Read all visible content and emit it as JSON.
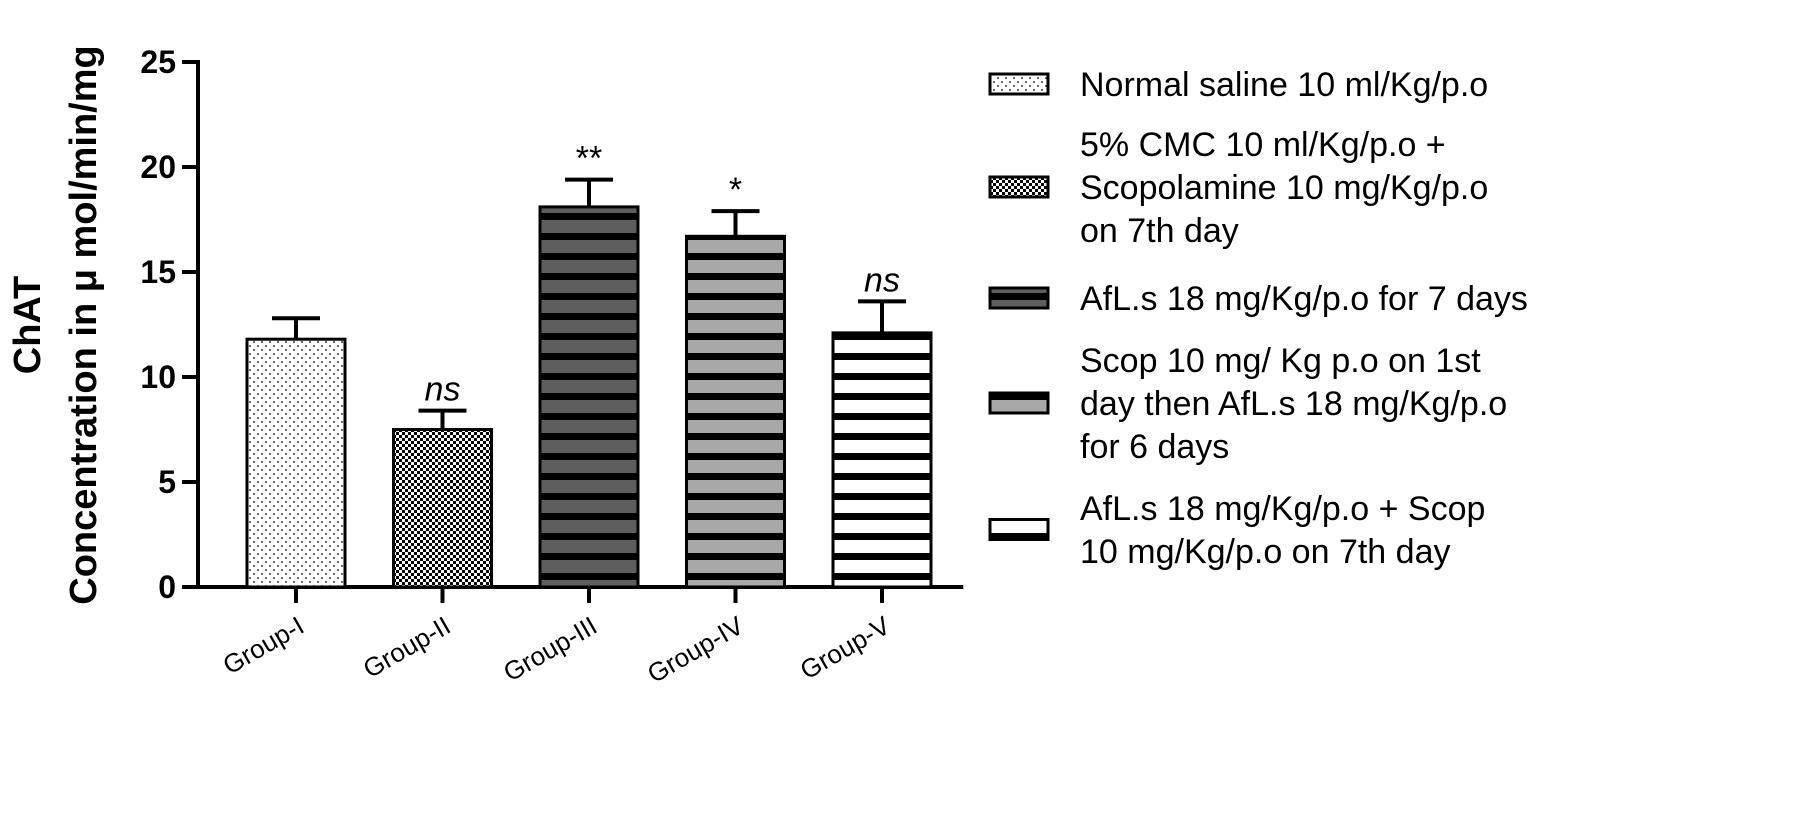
{
  "chart_data": {
    "type": "bar",
    "title": "",
    "xlabel": "",
    "ylabel_lines": [
      "ChAT",
      "Concentration in μ mol/min/mg"
    ],
    "ylim": [
      0,
      25
    ],
    "yticks": [
      0,
      5,
      10,
      15,
      20,
      25
    ],
    "grid": false,
    "legend_position": "right",
    "categories": [
      "Group-I",
      "Group-II",
      "Group-III",
      "Group-IV",
      "Group-V"
    ],
    "values": [
      11.8,
      7.5,
      18.1,
      16.7,
      12.1
    ],
    "errors": [
      1.0,
      0.9,
      1.3,
      1.2,
      1.5
    ],
    "annotations": [
      "",
      "ns",
      "**",
      "*",
      "ns"
    ],
    "series": [
      {
        "name_lines": [
          "Normal saline 10 ml/Kg/p.o"
        ],
        "pattern": "dots"
      },
      {
        "name_lines": [
          "5% CMC 10 ml/Kg/p.o +",
          "Scopolamine 10 mg/Kg/p.o",
          "on 7th day"
        ],
        "pattern": "checker"
      },
      {
        "name_lines": [
          "AfL.s 18 mg/Kg/p.o for 7 days"
        ],
        "pattern": "stripes-dark"
      },
      {
        "name_lines": [
          "Scop 10 mg/ Kg p.o on 1st",
          "day then AfL.s 18 mg/Kg/p.o",
          "for 6 days"
        ],
        "pattern": "stripes-gray"
      },
      {
        "name_lines": [
          "AfL.s 18 mg/Kg/p.o + Scop",
          "10 mg/Kg/p.o on 7th day"
        ],
        "pattern": "stripes-white"
      }
    ]
  }
}
